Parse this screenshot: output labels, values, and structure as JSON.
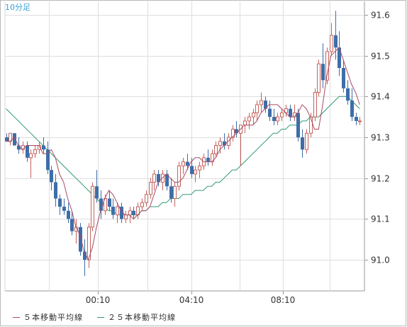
{
  "chart_data": {
    "type": "candlestick",
    "title": "10分足",
    "x_ticks": [
      "00:10",
      "04:10",
      "08:10"
    ],
    "y_ticks": [
      "91.6",
      "91.5",
      "91.4",
      "91.3",
      "91.2",
      "91.1",
      "91.0"
    ],
    "ylim": [
      90.93,
      91.64
    ],
    "grid": true,
    "legend_position": "bottom-left",
    "colors": {
      "up": "#c4635e",
      "down": "#3d6ea8",
      "ma5": "#aa4a64",
      "ma25": "#2f9a74"
    },
    "series": [
      {
        "name": "５本移動平均線",
        "color": "#aa4a64",
        "values": [
          91.29,
          91.29,
          91.3,
          91.28,
          91.27,
          91.28,
          91.28,
          91.28,
          91.28,
          91.26,
          91.26,
          91.27,
          91.25,
          91.21,
          91.19,
          91.15,
          91.12,
          91.08,
          91.06,
          91.02,
          91.0,
          91.03,
          91.08,
          91.12,
          91.15,
          91.17,
          91.16,
          91.14,
          91.12,
          91.11,
          91.11,
          91.1,
          91.11,
          91.12,
          91.12,
          91.13,
          91.16,
          91.19,
          91.2,
          91.21,
          91.2,
          91.19,
          91.19,
          91.2,
          91.22,
          91.24,
          91.25,
          91.25,
          91.24,
          91.24,
          91.24,
          91.25,
          91.27,
          91.28,
          91.29,
          91.3,
          91.31,
          91.32,
          91.33,
          91.33,
          91.33,
          91.34,
          91.36,
          91.37,
          91.38,
          91.38,
          91.38,
          91.37,
          91.36,
          91.35,
          91.35,
          91.36,
          91.38,
          91.37,
          91.35,
          91.32,
          91.32,
          91.38,
          91.45,
          91.5,
          91.51,
          91.52,
          91.49,
          91.46,
          91.43,
          91.41,
          91.38
        ]
      },
      {
        "name": "２５本移動平均線",
        "color": "#2f9a74",
        "values": [
          91.37,
          91.36,
          91.35,
          91.34,
          91.33,
          91.32,
          91.31,
          91.3,
          91.29,
          91.28,
          91.27,
          91.26,
          91.25,
          91.24,
          91.23,
          91.22,
          91.21,
          91.2,
          91.19,
          91.18,
          91.17,
          91.16,
          91.15,
          91.14,
          91.13,
          91.12,
          91.12,
          91.11,
          91.11,
          91.11,
          91.11,
          91.11,
          91.11,
          91.12,
          91.12,
          91.13,
          91.13,
          91.13,
          91.14,
          91.14,
          91.15,
          91.15,
          91.15,
          91.16,
          91.16,
          91.16,
          91.17,
          91.17,
          91.17,
          91.18,
          91.18,
          91.19,
          91.19,
          91.2,
          91.21,
          91.22,
          91.22,
          91.23,
          91.24,
          91.25,
          91.26,
          91.27,
          91.28,
          91.29,
          91.3,
          91.31,
          91.31,
          91.32,
          91.32,
          91.33,
          91.33,
          91.33,
          91.34,
          91.34,
          91.35,
          91.35,
          91.35,
          91.36,
          91.37,
          91.38,
          91.39,
          91.4,
          91.4,
          91.4,
          91.39,
          91.38,
          91.37
        ]
      }
    ],
    "candles": [
      [
        91.3,
        91.31,
        91.29,
        91.29
      ],
      [
        91.29,
        91.31,
        91.28,
        91.31
      ],
      [
        91.31,
        91.31,
        91.28,
        91.28
      ],
      [
        91.28,
        91.3,
        91.26,
        91.27
      ],
      [
        91.27,
        91.29,
        91.26,
        91.28
      ],
      [
        91.28,
        91.29,
        91.24,
        91.25
      ],
      [
        91.25,
        91.27,
        91.2,
        91.26
      ],
      [
        91.26,
        91.28,
        91.25,
        91.27
      ],
      [
        91.27,
        91.29,
        91.26,
        91.28
      ],
      [
        91.28,
        91.3,
        91.26,
        91.27
      ],
      [
        91.27,
        91.29,
        91.21,
        91.22
      ],
      [
        91.22,
        91.23,
        91.17,
        91.19
      ],
      [
        91.19,
        91.21,
        91.13,
        91.15
      ],
      [
        91.15,
        91.16,
        91.11,
        91.13
      ],
      [
        91.13,
        91.15,
        91.11,
        91.12
      ],
      [
        91.12,
        91.14,
        91.09,
        91.1
      ],
      [
        91.1,
        91.12,
        91.06,
        91.07
      ],
      [
        91.07,
        91.1,
        91.04,
        91.08
      ],
      [
        91.08,
        91.09,
        91.01,
        91.02
      ],
      [
        91.02,
        91.05,
        90.96,
        91.0
      ],
      [
        91.0,
        91.09,
        90.98,
        91.08
      ],
      [
        91.08,
        91.19,
        91.07,
        91.18
      ],
      [
        91.18,
        91.22,
        91.14,
        91.15
      ],
      [
        91.15,
        91.17,
        91.1,
        91.12
      ],
      [
        91.12,
        91.16,
        91.11,
        91.15
      ],
      [
        91.15,
        91.17,
        91.12,
        91.13
      ],
      [
        91.13,
        91.15,
        91.1,
        91.11
      ],
      [
        91.11,
        91.14,
        91.09,
        91.13
      ],
      [
        91.13,
        91.14,
        91.09,
        91.1
      ],
      [
        91.1,
        91.12,
        91.09,
        91.11
      ],
      [
        91.11,
        91.13,
        91.09,
        91.12
      ],
      [
        91.12,
        91.13,
        91.1,
        91.11
      ],
      [
        91.11,
        91.14,
        91.1,
        91.13
      ],
      [
        91.13,
        91.15,
        91.12,
        91.14
      ],
      [
        91.14,
        91.17,
        91.13,
        91.16
      ],
      [
        91.16,
        91.2,
        91.15,
        91.19
      ],
      [
        91.19,
        91.22,
        91.17,
        91.21
      ],
      [
        91.21,
        91.22,
        91.18,
        91.19
      ],
      [
        91.19,
        91.22,
        91.17,
        91.21
      ],
      [
        91.21,
        91.22,
        91.17,
        91.18
      ],
      [
        91.18,
        91.2,
        91.14,
        91.15
      ],
      [
        91.15,
        91.19,
        91.13,
        91.18
      ],
      [
        91.18,
        91.24,
        91.17,
        91.23
      ],
      [
        91.23,
        91.25,
        91.21,
        91.24
      ],
      [
        91.24,
        91.26,
        91.22,
        91.23
      ],
      [
        91.23,
        91.25,
        91.2,
        91.21
      ],
      [
        91.21,
        91.23,
        91.19,
        91.22
      ],
      [
        91.22,
        91.24,
        91.2,
        91.23
      ],
      [
        91.23,
        91.26,
        91.22,
        91.25
      ],
      [
        91.25,
        91.27,
        91.23,
        91.24
      ],
      [
        91.24,
        91.27,
        91.23,
        91.26
      ],
      [
        91.26,
        91.29,
        91.25,
        91.28
      ],
      [
        91.28,
        91.3,
        91.26,
        91.29
      ],
      [
        91.29,
        91.31,
        91.27,
        91.28
      ],
      [
        91.28,
        91.31,
        91.27,
        91.3
      ],
      [
        91.3,
        91.33,
        91.29,
        91.32
      ],
      [
        91.32,
        91.34,
        91.3,
        91.31
      ],
      [
        91.31,
        91.33,
        91.23,
        91.33
      ],
      [
        91.33,
        91.35,
        91.31,
        91.34
      ],
      [
        91.34,
        91.36,
        91.32,
        91.35
      ],
      [
        91.35,
        91.37,
        91.33,
        91.36
      ],
      [
        91.36,
        91.39,
        91.34,
        91.38
      ],
      [
        91.38,
        91.41,
        91.36,
        91.39
      ],
      [
        91.39,
        91.4,
        91.36,
        91.37
      ],
      [
        91.37,
        91.39,
        91.34,
        91.35
      ],
      [
        91.35,
        91.37,
        91.33,
        91.34
      ],
      [
        91.34,
        91.36,
        91.33,
        91.35
      ],
      [
        91.35,
        91.37,
        91.34,
        91.36
      ],
      [
        91.36,
        91.38,
        91.35,
        91.37
      ],
      [
        91.37,
        91.38,
        91.34,
        91.35
      ],
      [
        91.35,
        91.38,
        91.34,
        91.36
      ],
      [
        91.36,
        91.37,
        91.29,
        91.3
      ],
      [
        91.3,
        91.32,
        91.25,
        91.27
      ],
      [
        91.27,
        91.32,
        91.26,
        91.31
      ],
      [
        91.31,
        91.36,
        91.3,
        91.35
      ],
      [
        91.35,
        91.42,
        91.34,
        91.41
      ],
      [
        91.41,
        91.49,
        91.4,
        91.48
      ],
      [
        91.48,
        91.53,
        91.42,
        91.44
      ],
      [
        91.44,
        91.52,
        91.43,
        91.51
      ],
      [
        91.51,
        91.58,
        91.5,
        91.55
      ],
      [
        91.55,
        91.61,
        91.49,
        91.52
      ],
      [
        91.52,
        91.56,
        91.45,
        91.47
      ],
      [
        91.47,
        91.49,
        91.41,
        91.42
      ],
      [
        91.42,
        91.44,
        91.38,
        91.39
      ],
      [
        91.39,
        91.42,
        91.34,
        91.35
      ],
      [
        91.35,
        91.36,
        91.33,
        91.34
      ],
      [
        91.34,
        91.35,
        91.33,
        91.34
      ]
    ]
  }
}
